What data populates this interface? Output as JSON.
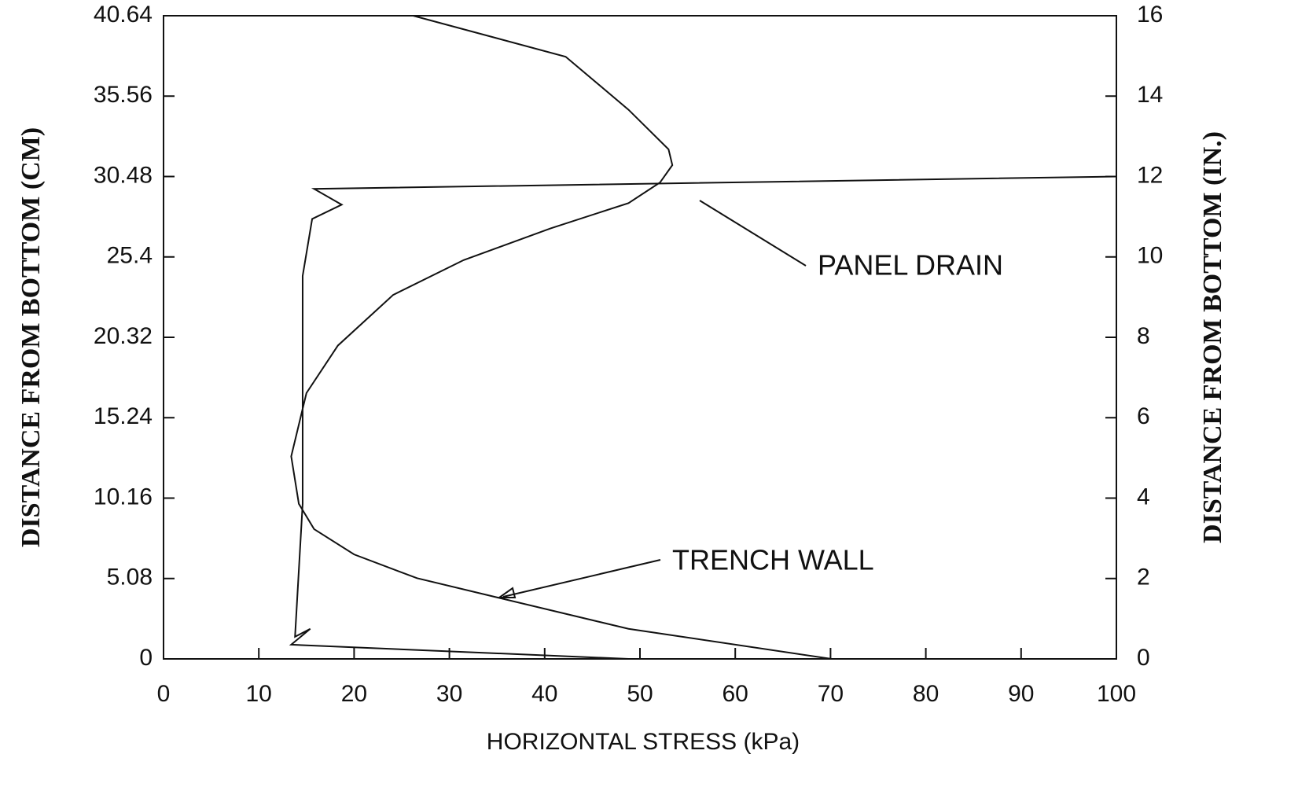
{
  "chart_data": {
    "type": "line",
    "xlabel": "HORIZONTAL STRESS (kPa)",
    "ylabel": "DISTANCE FROM BOTTOM (CM)",
    "y2label": "DISTANCE FROM BOTTOM (IN.)",
    "xlim": [
      0,
      100
    ],
    "xticks": [
      0,
      10,
      20,
      30,
      40,
      50,
      60,
      70,
      80,
      90,
      100
    ],
    "ylim": [
      0,
      40.64
    ],
    "yticks": [
      0,
      5.08,
      10.16,
      15.24,
      20.32,
      25.4,
      30.48,
      35.56,
      40.64
    ],
    "y2lim": [
      0,
      16
    ],
    "y2ticks": [
      0,
      2,
      4,
      6,
      8,
      10,
      12,
      14,
      16
    ],
    "color": "#111111",
    "series": [
      {
        "name": "PANEL DRAIN",
        "x": [
          100,
          15.8,
          18.7,
          15.6,
          14.6,
          14.6,
          14.6,
          13.8,
          15.4,
          13.4,
          48.8
        ],
        "values": [
          30.48,
          29.7,
          28.7,
          27.8,
          24.2,
          16.8,
          9.8,
          1.4,
          1.9,
          0.9,
          0
        ]
      },
      {
        "name": "TRENCH WALL",
        "x": [
          26.2,
          42.2,
          48.8,
          53.0,
          53.4,
          52.1,
          48.8,
          40.6,
          31.5,
          24.1,
          18.3,
          15.0,
          13.4,
          14.2,
          15.8,
          20.0,
          26.6,
          35.6,
          48.8,
          70.1
        ],
        "values": [
          40.64,
          38.05,
          34.7,
          32.2,
          31.2,
          30.1,
          28.8,
          27.2,
          25.2,
          23.0,
          19.8,
          16.8,
          12.8,
          9.8,
          8.2,
          6.6,
          5.1,
          3.8,
          1.9,
          0
        ]
      }
    ]
  }
}
